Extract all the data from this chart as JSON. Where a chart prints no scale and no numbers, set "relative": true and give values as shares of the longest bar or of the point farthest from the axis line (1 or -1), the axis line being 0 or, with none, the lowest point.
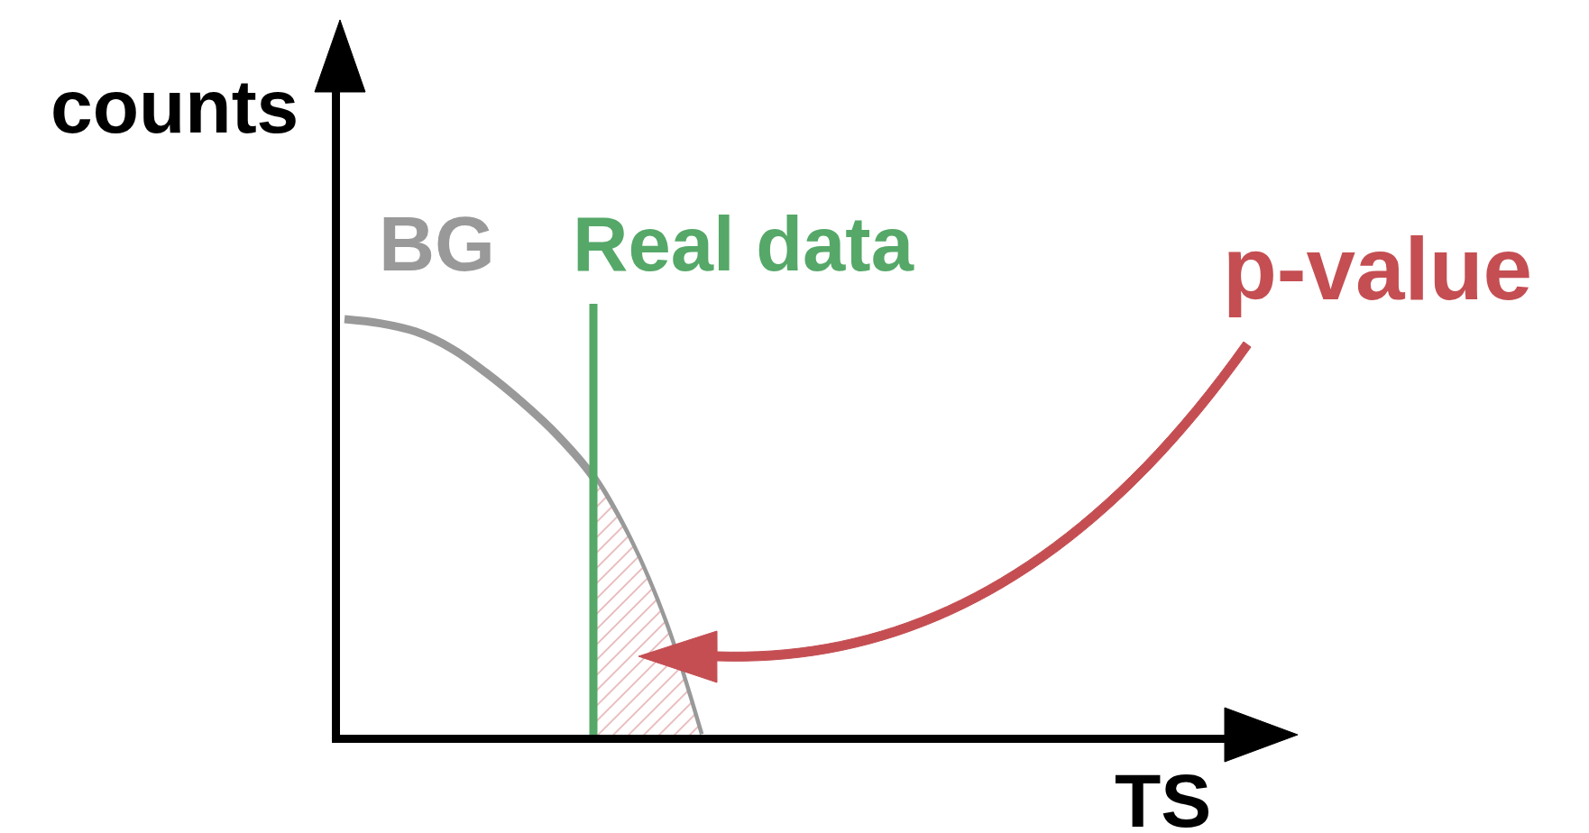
{
  "chart_data": {
    "type": "line",
    "relative": true,
    "xlabel": "TS",
    "ylabel": "counts",
    "categories": [
      null,
      null,
      null,
      null,
      null,
      null,
      null,
      null,
      null,
      null,
      null,
      null,
      null,
      null,
      null,
      null,
      null,
      null,
      null,
      null,
      null,
      null,
      null,
      null,
      null,
      null,
      null
    ],
    "series": [
      {
        "name": "BG",
        "color": "#999999",
        "values": [
          1,
          0.99,
          0.97,
          0.93,
          0.87,
          0.8,
          0.72,
          0.62,
          0.47,
          0.27,
          0,
          null,
          null,
          null,
          null,
          null,
          null,
          null,
          null,
          null,
          null,
          null,
          null,
          null,
          null,
          null,
          null
        ]
      },
      {
        "type": "area",
        "color": "#c44e52",
        "values": [
          null,
          null,
          null,
          null,
          null,
          null,
          null,
          0.62,
          0.47,
          0.27,
          0,
          null,
          null,
          null,
          null,
          null,
          null,
          null,
          null,
          null,
          null,
          null,
          null,
          null,
          null,
          null,
          null
        ]
      }
    ],
    "annotations": [
      "Real data",
      "p-value"
    ],
    "legend": false,
    "marker": "none",
    "line_style": "solid"
  }
}
